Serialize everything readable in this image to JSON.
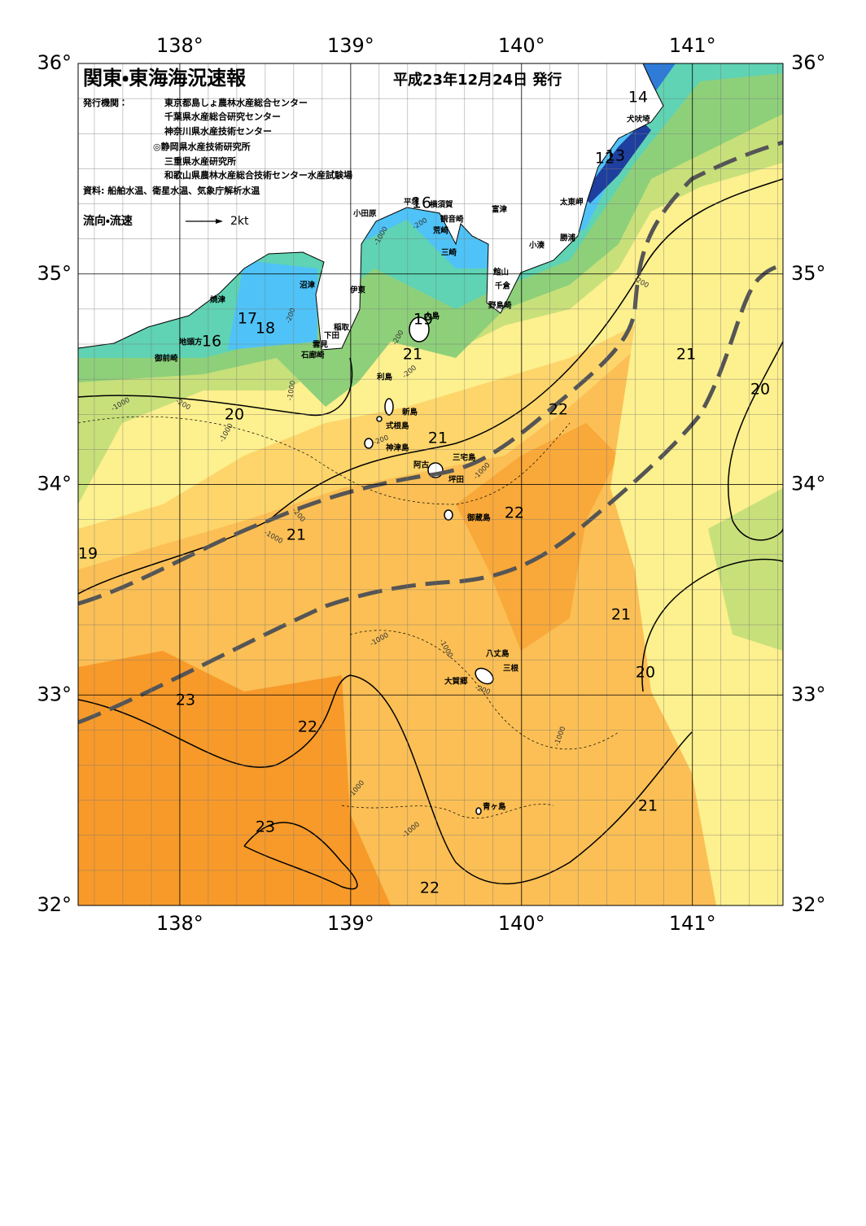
{
  "header": {
    "title": "関東・東海海況速報",
    "date": "平成23年12月24日 発行",
    "issuer_label": "発行機関：",
    "issuers": [
      "東京都島しょ農林水産総合センター",
      "千葉県水産総合研究センター",
      "神奈川県水産技術センター",
      "◎静岡県水産技術研究所",
      "三重県水産研究所",
      "和歌山県農林水産総合技術センター水産試験場"
    ],
    "sources": "資料: 船舶水温、衛星水温、気象庁解析水温"
  },
  "legend": {
    "label": "流向・流速",
    "arrow": "2kt"
  },
  "map": {
    "xlim": [
      137.405,
      141.53
    ],
    "ylim": [
      32,
      36
    ],
    "xticks": [
      {
        "value": 138,
        "label": "138°"
      },
      {
        "value": 139,
        "label": "139°"
      },
      {
        "value": 140,
        "label": "140°"
      },
      {
        "value": 141,
        "label": "141°"
      }
    ],
    "yticks": [
      {
        "value": 32,
        "label": "32°"
      },
      {
        "value": 33,
        "label": "33°"
      },
      {
        "value": 34,
        "label": "34°"
      },
      {
        "value": 35,
        "label": "35°"
      },
      {
        "value": 36,
        "label": "36°"
      }
    ]
  },
  "place_names": [
    "犬吠埼",
    "太東岬",
    "勝浦",
    "小湊",
    "館山",
    "千倉",
    "野島崎",
    "富津",
    "三崎",
    "観音崎",
    "荒崎",
    "横須賀",
    "平塚",
    "小田原",
    "沼津",
    "伊東",
    "稲取",
    "下田",
    "雲見",
    "石廊崎",
    "焼津",
    "地頭方",
    "御前崎",
    "大島",
    "利島",
    "新島",
    "式根島",
    "神津島",
    "三宅島",
    "阿古",
    "坪田",
    "御蔵島",
    "八丈島",
    "三根",
    "大賀郷",
    "青ヶ島"
  ],
  "temperature_labels": [
    14,
    12,
    13,
    16,
    17,
    18,
    16,
    19,
    21,
    20,
    21,
    22,
    21,
    20,
    22,
    21,
    19,
    21,
    20,
    23,
    22,
    23,
    21,
    22
  ],
  "depth_labels": [
    "-1000",
    "-200",
    "-200",
    "-200",
    "-200",
    "-1000",
    "-200",
    "-1000",
    "-1000",
    "-200",
    "-1000",
    "-200",
    "-1000",
    "-1000",
    "-1000",
    "-200",
    "-1000",
    "-1000",
    "-1000",
    "-200"
  ]
}
